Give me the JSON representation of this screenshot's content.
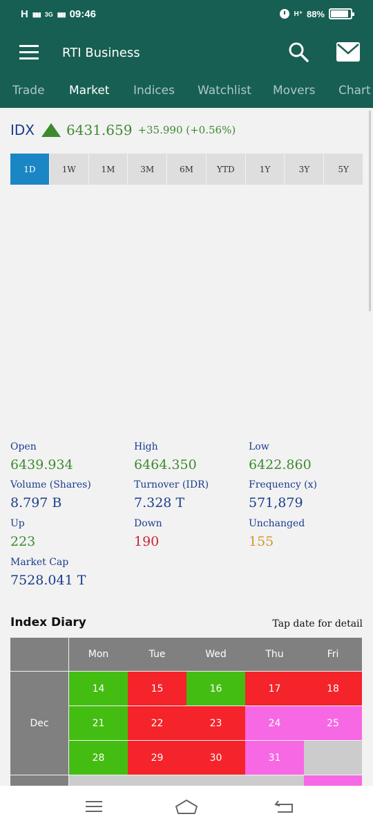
{
  "status_bar": {
    "network": "H",
    "network_type": "3G",
    "time": "09:46",
    "data_indicator": "H⁺",
    "battery": "88%",
    "battery_level": 0.88
  },
  "app": {
    "title": "RTI Business"
  },
  "tabs": [
    {
      "label": "Trade",
      "active": false
    },
    {
      "label": "Market",
      "active": true
    },
    {
      "label": "Indices",
      "active": false
    },
    {
      "label": "Watchlist",
      "active": false
    },
    {
      "label": "Movers",
      "active": false
    },
    {
      "label": "Chart",
      "active": false
    }
  ],
  "index": {
    "name": "IDX",
    "trend_icon": "triangle-up-icon",
    "value": "6431.659",
    "change": "+35.990 (+0.56%)"
  },
  "periods": [
    "1D",
    "1W",
    "1M",
    "3M",
    "6M",
    "YTD",
    "1Y",
    "3Y",
    "5Y"
  ],
  "active_period": "1D",
  "stats": {
    "open": {
      "label": "Open",
      "value": "6439.934"
    },
    "high": {
      "label": "High",
      "value": "6464.350"
    },
    "low": {
      "label": "Low",
      "value": "6422.860"
    },
    "volume": {
      "label": "Volume (Shares)",
      "value": "8.797 B"
    },
    "turnover": {
      "label": "Turnover (IDR)",
      "value": "7.328 T"
    },
    "frequency": {
      "label": "Frequency (x)",
      "value": "571,879"
    },
    "up": {
      "label": "Up",
      "value": "223"
    },
    "down": {
      "label": "Down",
      "value": "190"
    },
    "unchanged": {
      "label": "Unchanged",
      "value": "155"
    },
    "market_cap": {
      "label": "Market Cap",
      "value": "7528.041 T"
    }
  },
  "diary": {
    "title": "Index Diary",
    "hint": "Tap date for detail",
    "days": [
      "Mon",
      "Tue",
      "Wed",
      "Thu",
      "Fri"
    ],
    "month": "Dec",
    "weeks": [
      [
        {
          "day": "14",
          "status": "up"
        },
        {
          "day": "15",
          "status": "down"
        },
        {
          "day": "16",
          "status": "up"
        },
        {
          "day": "17",
          "status": "down"
        },
        {
          "day": "18",
          "status": "down"
        }
      ],
      [
        {
          "day": "21",
          "status": "up"
        },
        {
          "day": "22",
          "status": "down"
        },
        {
          "day": "23",
          "status": "down"
        },
        {
          "day": "24",
          "status": "holiday"
        },
        {
          "day": "25",
          "status": "holiday"
        }
      ],
      [
        {
          "day": "28",
          "status": "up"
        },
        {
          "day": "29",
          "status": "down"
        },
        {
          "day": "30",
          "status": "down"
        },
        {
          "day": "31",
          "status": "holiday"
        },
        {
          "day": "",
          "status": "empty"
        }
      ]
    ],
    "partial_row": [
      "empty",
      "empty",
      "empty",
      "empty",
      "holiday"
    ]
  },
  "colors": {
    "brand": "#175f52",
    "up": "#44bd13",
    "down": "#f5232a",
    "holiday": "#f768e4",
    "empty": "#cccccc",
    "header": "#808080",
    "active_period": "#1a86c4",
    "positive_text": "#3c8a2e",
    "negative_text": "#cc2233",
    "neutral_text": "#d09a2a",
    "label_text": "#1a3c8c"
  },
  "nav": [
    {
      "name": "recents-icon"
    },
    {
      "name": "home-icon"
    },
    {
      "name": "back-icon"
    }
  ]
}
